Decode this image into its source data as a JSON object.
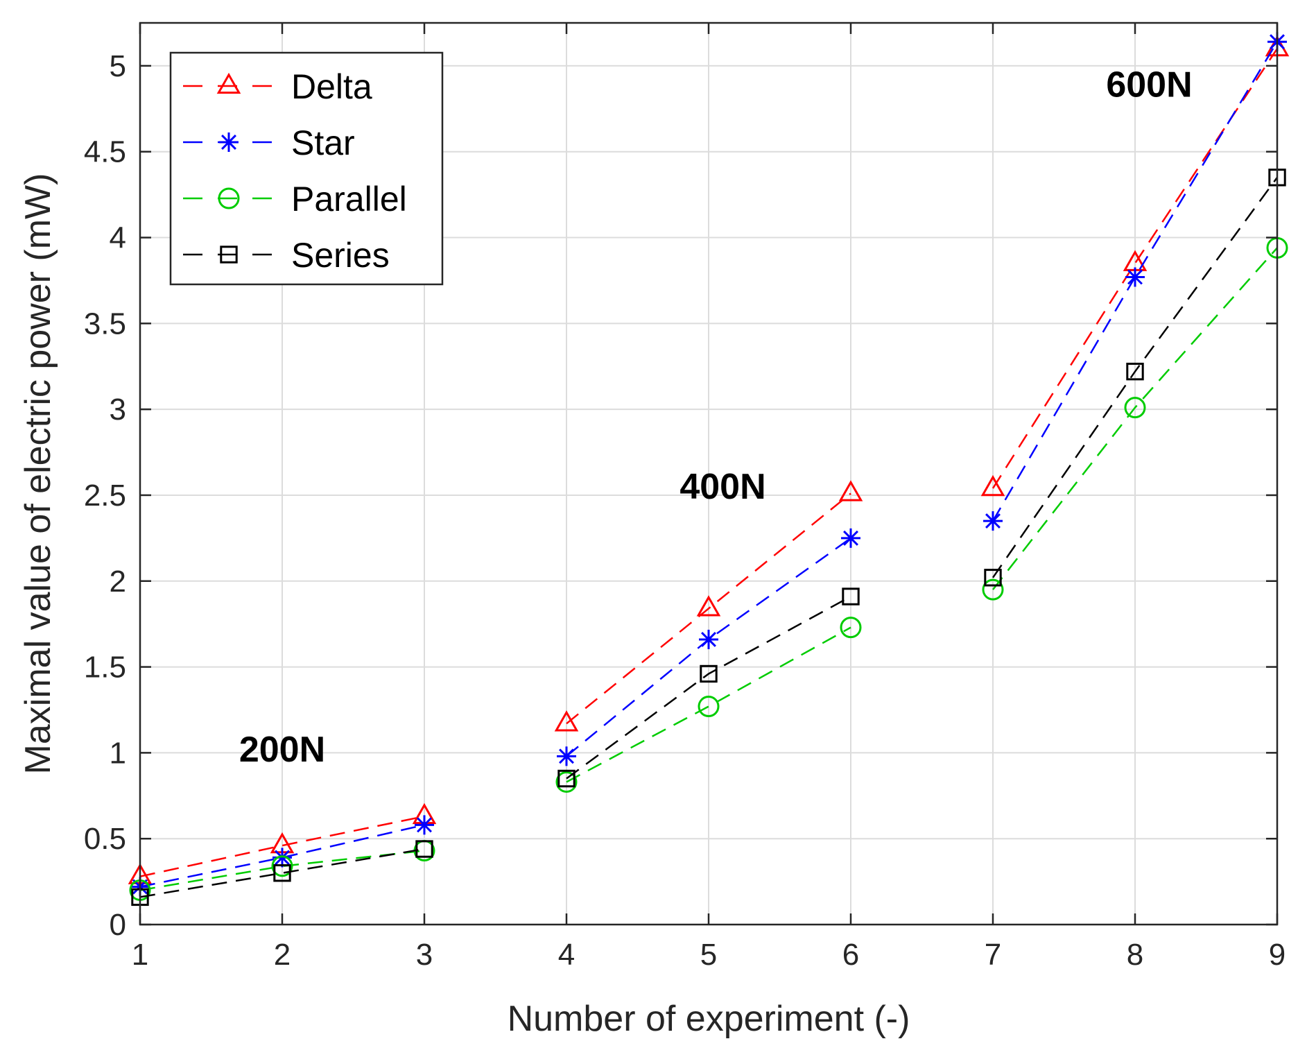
{
  "chart_data": {
    "type": "line",
    "xlabel": "Number of experiment (-)",
    "ylabel": "Maximal value of electric power (mW)",
    "xlim": [
      1,
      9
    ],
    "ylim": [
      0,
      5.25
    ],
    "x_ticks": [
      "1",
      "2",
      "3",
      "4",
      "5",
      "6",
      "7",
      "8",
      "9"
    ],
    "y_ticks": [
      "0",
      "0.5",
      "1",
      "1.5",
      "2",
      "2.5",
      "3",
      "3.5",
      "4",
      "4.5",
      "5"
    ],
    "grid": true,
    "legend_position": "top-left",
    "groups": [
      [
        1,
        2,
        3
      ],
      [
        4,
        5,
        6
      ],
      [
        7,
        8,
        9
      ]
    ],
    "series": [
      {
        "name": "Delta",
        "color": "#ff0000",
        "marker": "triangle",
        "line_style": "dashed",
        "x": [
          1,
          2,
          3,
          4,
          5,
          6,
          7,
          8,
          9
        ],
        "values": [
          0.28,
          0.46,
          0.63,
          1.17,
          1.84,
          2.51,
          2.54,
          3.85,
          5.1
        ]
      },
      {
        "name": "Star",
        "color": "#0000ff",
        "marker": "star",
        "line_style": "dashed",
        "x": [
          1,
          2,
          3,
          4,
          5,
          6,
          7,
          8,
          9
        ],
        "values": [
          0.22,
          0.39,
          0.58,
          0.98,
          1.66,
          2.25,
          2.35,
          3.77,
          5.14
        ]
      },
      {
        "name": "Parallel",
        "color": "#00cc00",
        "marker": "circle",
        "line_style": "dashed",
        "x": [
          1,
          2,
          3,
          4,
          5,
          6,
          7,
          8,
          9
        ],
        "values": [
          0.2,
          0.34,
          0.43,
          0.83,
          1.27,
          1.73,
          1.95,
          3.01,
          3.94
        ]
      },
      {
        "name": "Series",
        "color": "#000000",
        "marker": "square",
        "line_style": "dashed",
        "x": [
          1,
          2,
          3,
          4,
          5,
          6,
          7,
          8,
          9
        ],
        "values": [
          0.16,
          0.3,
          0.44,
          0.85,
          1.46,
          1.91,
          2.02,
          3.22,
          4.35
        ]
      }
    ],
    "annotations": [
      {
        "text": "200N",
        "x": 2.0,
        "y": 0.95
      },
      {
        "text": "400N",
        "x": 5.1,
        "y": 2.48
      },
      {
        "text": "600N",
        "x": 8.1,
        "y": 4.82
      }
    ]
  }
}
